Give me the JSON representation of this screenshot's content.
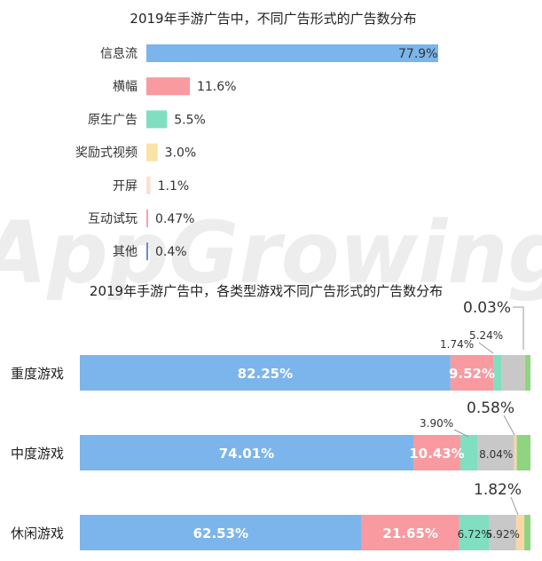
{
  "watermark": "AppGrowing",
  "chart_data": [
    {
      "type": "bar",
      "orientation": "horizontal",
      "title": "2019年手游广告中，不同广告形式的广告数分布",
      "xlabel": "",
      "ylabel": "",
      "xlim": [
        0,
        100
      ],
      "grid": false,
      "legend": "none",
      "categories": [
        "信息流",
        "横幅",
        "原生广告",
        "奖励式视频",
        "开屏",
        "互动试玩",
        "其他"
      ],
      "values": [
        77.9,
        11.6,
        5.5,
        3.0,
        1.1,
        0.47,
        0.4
      ],
      "value_labels": [
        "77.9%",
        "11.6%",
        "5.5%",
        "3.0%",
        "1.1%",
        "0.47%",
        "0.4%"
      ],
      "colors": [
        "#7cb5ec",
        "#f89aa0",
        "#7fdfc0",
        "#fbe3a6",
        "#fbe0d8",
        "#f4a3b0",
        "#6b8cc7"
      ]
    },
    {
      "type": "bar",
      "orientation": "horizontal",
      "stacked": true,
      "title": "2019年手游广告中，各类型游戏不同广告形式的广告数分布",
      "xlabel": "",
      "ylabel": "",
      "xlim": [
        0,
        100
      ],
      "grid": false,
      "legend": "none",
      "categories": [
        "重度游戏",
        "中度游戏",
        "休闲游戏"
      ],
      "series": [
        {
          "values": [
            82.25,
            74.01,
            62.53
          ],
          "labels": [
            "82.25%",
            "74.01%",
            "62.53%"
          ],
          "color": "#7cb5ec"
        },
        {
          "values": [
            9.52,
            10.43,
            21.65
          ],
          "labels": [
            "9.52%",
            "10.43%",
            "21.65%"
          ],
          "color": "#f89aa0"
        },
        {
          "values": [
            1.74,
            3.9,
            6.72
          ],
          "labels": [
            "1.74%",
            "3.90%",
            "6.72%"
          ],
          "color": "#7fdfc0"
        },
        {
          "values": [
            5.24,
            8.04,
            5.92
          ],
          "labels": [
            "5.24%",
            "8.04%",
            "5.92%"
          ],
          "color": "#c8c8c8"
        },
        {
          "values": [
            0.03,
            0.58,
            1.82
          ],
          "labels": [
            "0.03%",
            "0.58%",
            "1.82%"
          ],
          "color": "#fbd7a6"
        },
        {
          "values": [
            1.22,
            3.04,
            1.36
          ],
          "labels": [
            "",
            "",
            ""
          ],
          "color": "#8fd480"
        }
      ]
    }
  ]
}
